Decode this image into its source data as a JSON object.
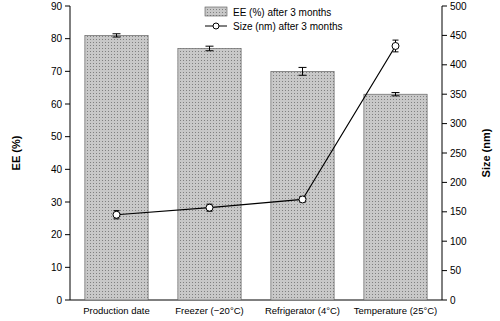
{
  "chart_data": {
    "type": "bar",
    "categories": [
      "Production date",
      "Freezer (−20°C)",
      "Refrigerator (4°C)",
      "Temperature (25°C)"
    ],
    "series": [
      {
        "name": "EE (%) after 3 months",
        "type": "bar",
        "color": "#c8c8c8",
        "values": [
          81,
          77,
          70,
          63
        ],
        "errors": [
          0.5,
          0.7,
          1.2,
          0.5
        ]
      },
      {
        "name": "Size (nm) after 3 months",
        "type": "line",
        "axis": "y2",
        "color": "#000000",
        "marker": "circle",
        "values": [
          145,
          157,
          171,
          432
        ],
        "errors": [
          7,
          6,
          5,
          10
        ]
      }
    ],
    "y_label": "EE (%)",
    "y2_label": "Size (nm)",
    "ylim": [
      0,
      90
    ],
    "yticks": [
      0,
      10,
      20,
      30,
      40,
      50,
      60,
      70,
      80,
      90
    ],
    "y2lim": [
      0,
      500
    ],
    "y2ticks": [
      0,
      50,
      100,
      150,
      200,
      250,
      300,
      350,
      400,
      450,
      500
    ],
    "legend": "top"
  }
}
